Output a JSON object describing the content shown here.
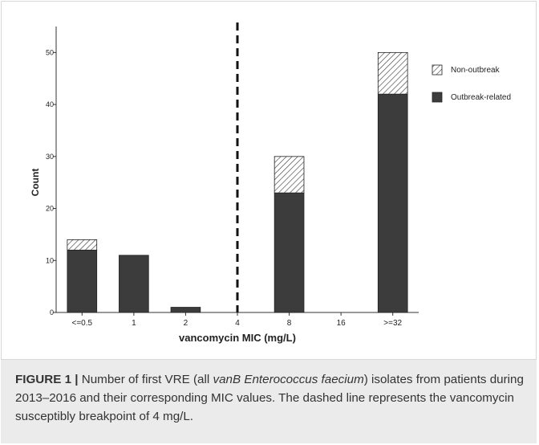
{
  "chart_data": {
    "type": "bar",
    "stacked": true,
    "categories": [
      "<=0.5",
      "1",
      "2",
      "4",
      "8",
      "16",
      ">=32"
    ],
    "series": [
      {
        "name": "Outbreak-related",
        "values": [
          12,
          11,
          1,
          0,
          23,
          0,
          42
        ],
        "color": "#3c3c3c",
        "pattern": "solid"
      },
      {
        "name": "Non-outbreak",
        "values": [
          2,
          0,
          0,
          0,
          7,
          0,
          8
        ],
        "color": "#ffffff",
        "pattern": "diagonal-hatch"
      }
    ],
    "xlabel": "vancomycin MIC (mg/L)",
    "ylabel": "Count",
    "ylim": [
      0,
      55
    ],
    "yticks": [
      0,
      10,
      20,
      30,
      40,
      50
    ],
    "ytick_labels": [
      "0",
      "10",
      "20",
      "30",
      "40",
      "50"
    ],
    "breakpoint": {
      "category": "4",
      "style": "dashed"
    },
    "grid": false,
    "legend_position": "top-right"
  },
  "caption": {
    "label": "FIGURE 1 |",
    "text_1": "Number of first VRE (all ",
    "italic": "vanB Enterococcus faecium",
    "text_2": ") isolates from patients during 2013–2016 and their corresponding MIC values. The dashed line represents the vancomycin susceptibly breakpoint of 4 mg/L."
  }
}
